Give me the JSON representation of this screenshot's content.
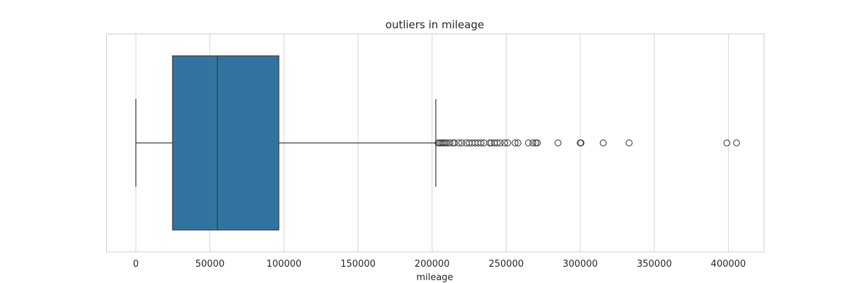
{
  "chart_data": {
    "type": "boxplot",
    "orientation": "horizontal",
    "title": "outliers in mileage",
    "xlabel": "mileage",
    "ylabel": "",
    "xlim": [
      -20000,
      425000
    ],
    "xticks": [
      0,
      50000,
      100000,
      150000,
      200000,
      250000,
      300000,
      350000,
      400000
    ],
    "xtick_labels": [
      "0",
      "50000",
      "100000",
      "150000",
      "200000",
      "250000",
      "300000",
      "350000",
      "400000"
    ],
    "grid": true,
    "box": {
      "whisker_low": 0,
      "q1": 24800,
      "median": 55000,
      "q3": 96500,
      "whisker_high": 202500
    },
    "outliers": [
      204000,
      205000,
      206000,
      207000,
      208000,
      209000,
      210000,
      212000,
      214000,
      215000,
      218000,
      220000,
      223000,
      225000,
      227000,
      229000,
      231000,
      233000,
      235000,
      239000,
      240000,
      242000,
      244000,
      246000,
      249000,
      251000,
      256000,
      258000,
      265000,
      268000,
      270000,
      271000,
      285000,
      300000,
      300500,
      315500,
      333000,
      399000,
      405500
    ],
    "colors": {
      "box_fill": "#3274a1",
      "line": "#3f3f3f",
      "grid": "#d6d6d6",
      "frame": "#cccccc"
    }
  }
}
